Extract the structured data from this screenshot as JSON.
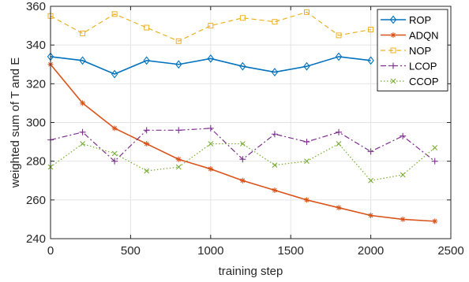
{
  "chart_data": {
    "type": "line",
    "title": "",
    "xlabel": "training step",
    "ylabel": "weighted sum of T and E",
    "xlim": [
      0,
      2500
    ],
    "ylim": [
      240,
      360
    ],
    "xticks": [
      0,
      500,
      1000,
      1500,
      2000,
      2500
    ],
    "yticks": [
      240,
      260,
      280,
      300,
      320,
      340,
      360
    ],
    "grid": true,
    "legend_position": "top-right",
    "x": [
      0,
      200,
      400,
      600,
      800,
      1000,
      1200,
      1400,
      1600,
      1800,
      2000,
      2200,
      2400
    ],
    "series": [
      {
        "name": "ROP",
        "color": "#0072BD",
        "line": "solid",
        "marker": "diamond",
        "x": [
          0,
          200,
          400,
          600,
          800,
          1000,
          1200,
          1400,
          1600,
          1800,
          2000
        ],
        "values": [
          334,
          332,
          325,
          332,
          330,
          333,
          329,
          326,
          329,
          334,
          332
        ]
      },
      {
        "name": "ADQN",
        "color": "#D95319",
        "line": "solid",
        "marker": "star",
        "values": [
          330,
          310,
          297,
          289,
          281,
          276,
          270,
          265,
          260,
          256,
          252,
          250,
          249
        ]
      },
      {
        "name": "NOP",
        "color": "#EDB120",
        "line": "dashed",
        "marker": "square",
        "x": [
          0,
          200,
          400,
          600,
          800,
          1000,
          1200,
          1400,
          1600,
          1800,
          2000
        ],
        "values": [
          355,
          346,
          356,
          349,
          342,
          350,
          354,
          352,
          357,
          345,
          348
        ]
      },
      {
        "name": "LCOP",
        "color": "#7E2F8E",
        "line": "dashdot",
        "marker": "plus",
        "values": [
          291,
          295,
          280,
          296,
          296,
          297,
          281,
          294,
          290,
          295,
          285,
          293,
          280
        ]
      },
      {
        "name": "CCOP",
        "color": "#77AC30",
        "line": "dotted",
        "marker": "x",
        "values": [
          277,
          289,
          284,
          275,
          277,
          289,
          289,
          278,
          280,
          289,
          270,
          273,
          287
        ]
      }
    ]
  }
}
